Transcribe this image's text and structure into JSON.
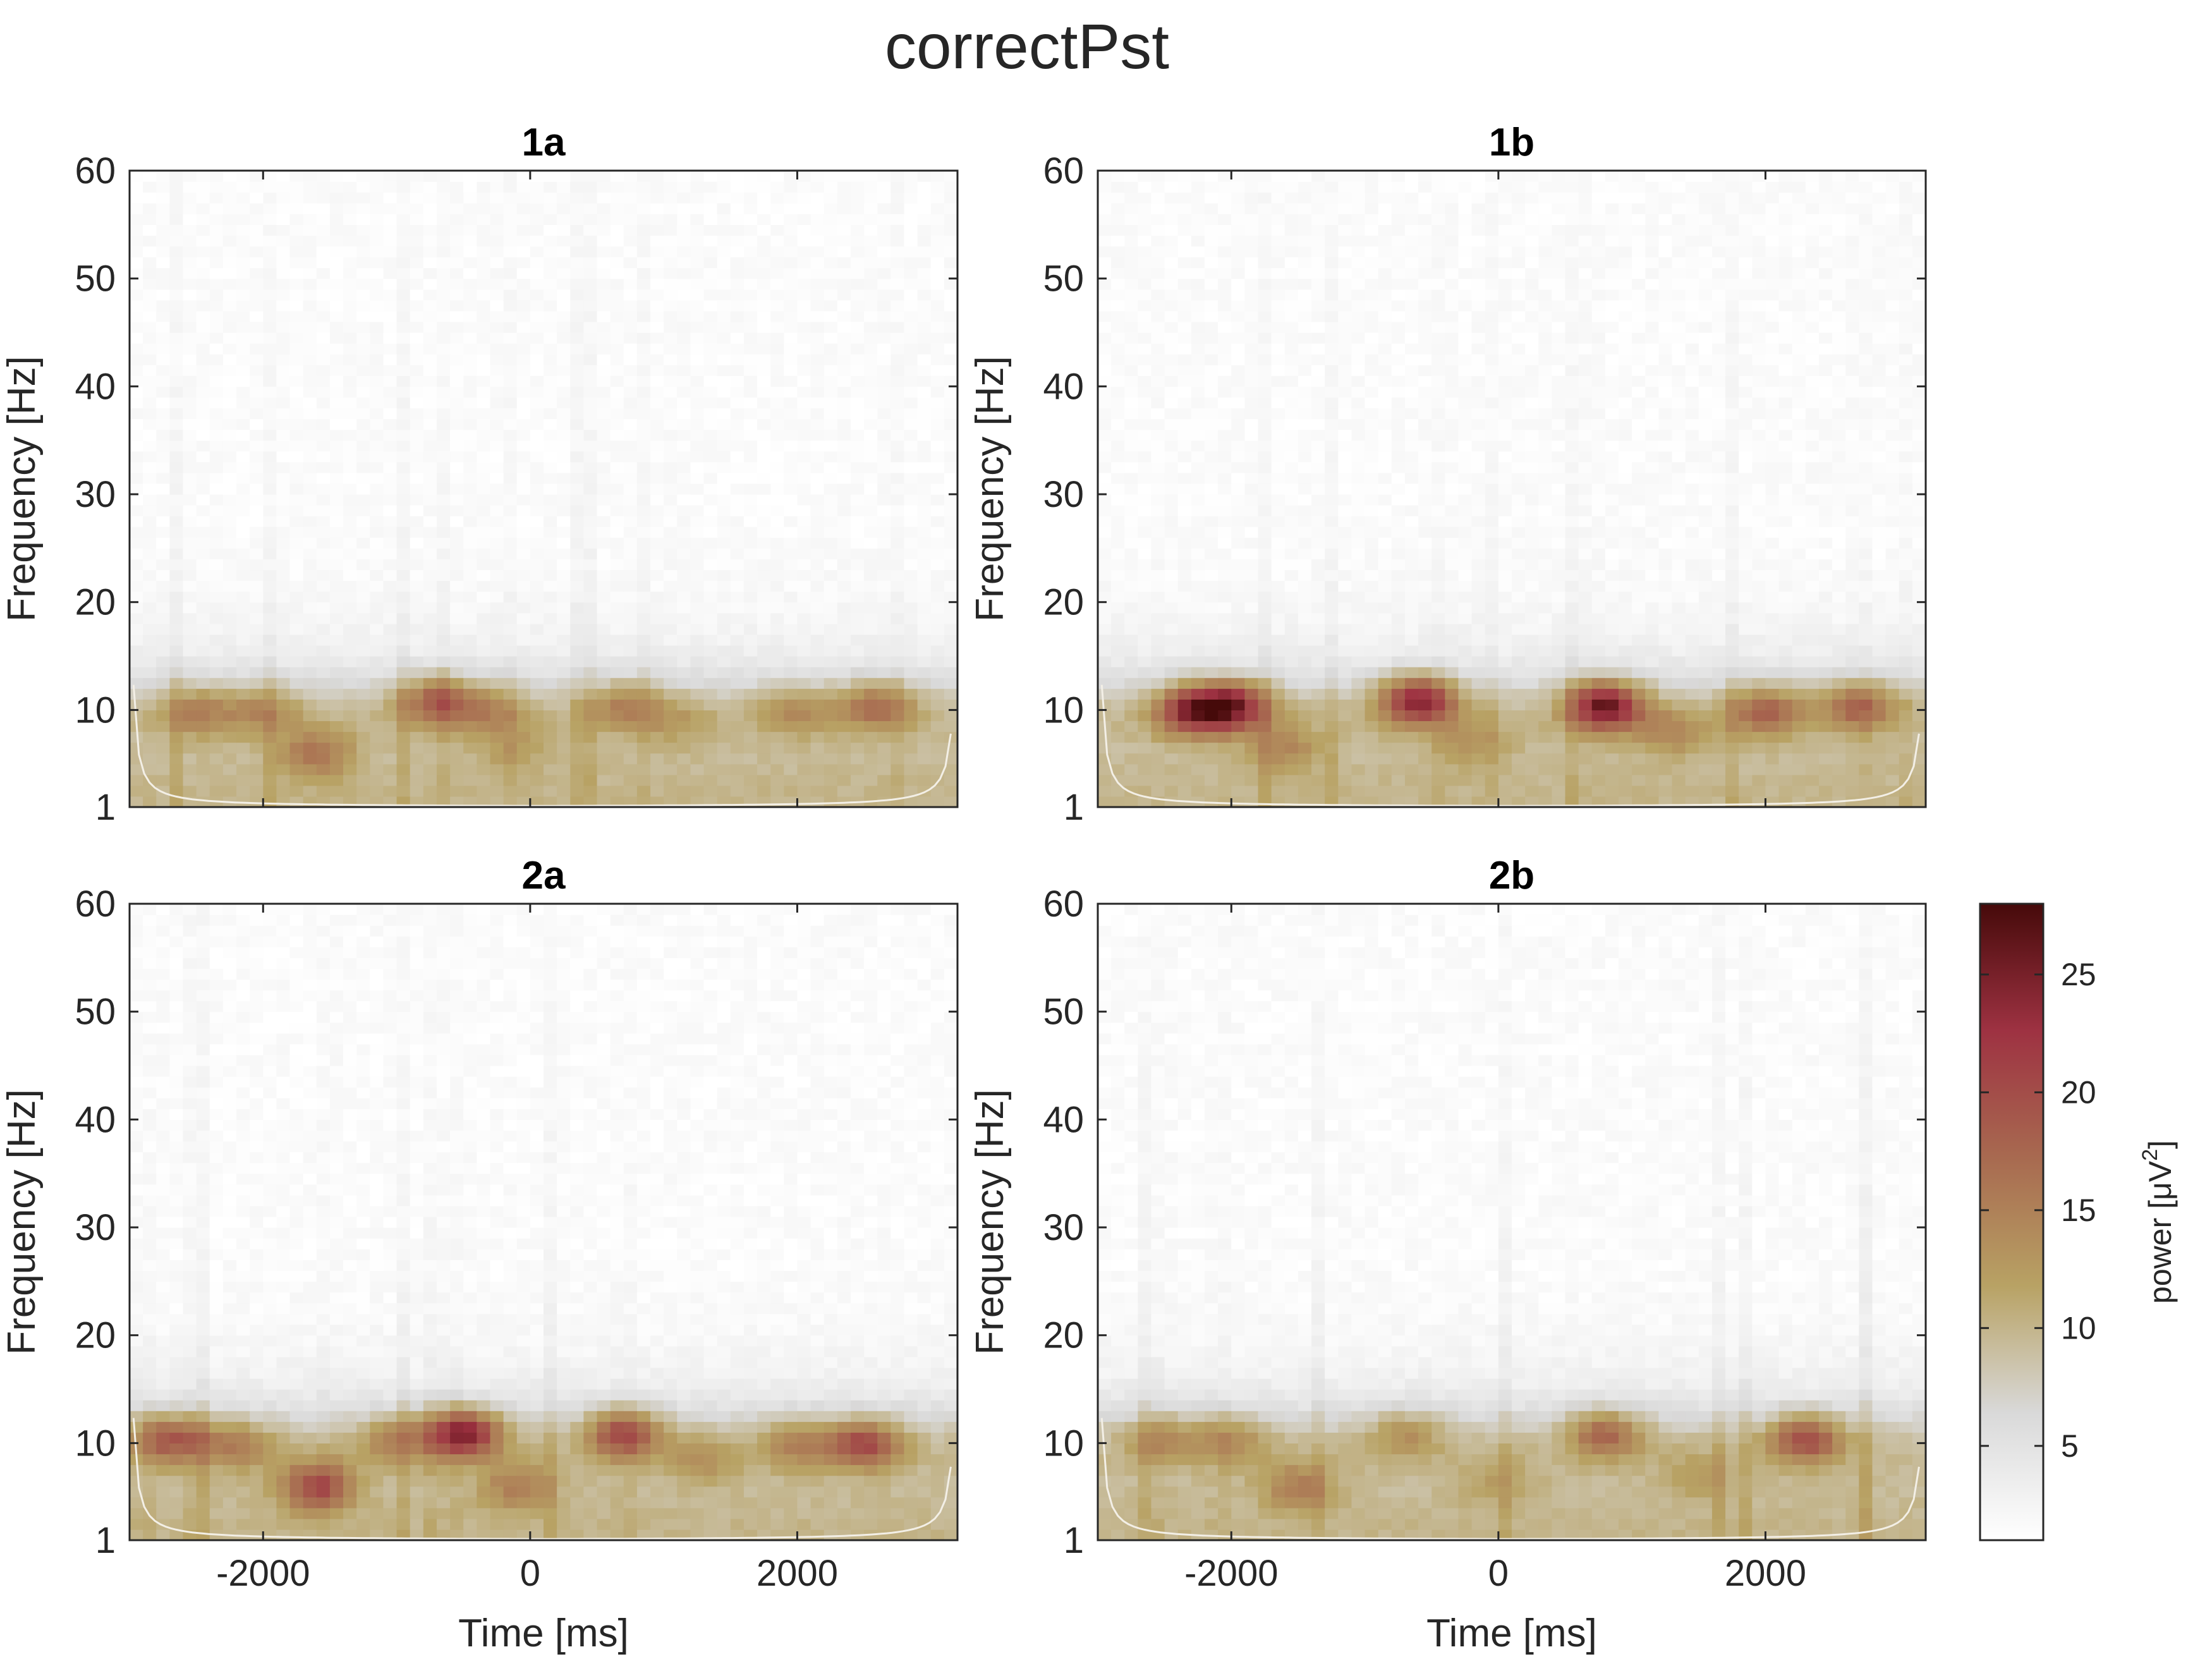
{
  "chart_data": {
    "type": "heatmap",
    "title": "correctPst",
    "xlabel": "Time [ms]",
    "ylabel": "Frequency [Hz]",
    "xlim": [
      -3000,
      3200
    ],
    "ylim": [
      1,
      60
    ],
    "xticks": [
      -2000,
      0,
      2000
    ],
    "xtick_labels": [
      "-2000",
      "0",
      "2000"
    ],
    "yticks": [
      1,
      10,
      20,
      30,
      40,
      50,
      60
    ],
    "ytick_labels": [
      "1",
      "10",
      "20",
      "30",
      "40",
      "50",
      "60"
    ],
    "grid": false,
    "colorbar": {
      "label": "power [μV",
      "label_superscript": "2",
      "label_close": "]",
      "range": [
        1,
        28
      ],
      "ticks": [
        5,
        10,
        15,
        20,
        25
      ],
      "tick_labels": [
        "5",
        "10",
        "15",
        "20",
        "25"
      ],
      "colors": [
        "#ffffff",
        "#d9d9d9",
        "#b8a264",
        "#a86a50",
        "#9e3242",
        "#460a0a"
      ]
    },
    "cone_of_influence_color": "#f3efe6",
    "panels": [
      {
        "title": "1a",
        "alpha_band": [
          {
            "t": -2500,
            "f": 9.5,
            "power": 17
          },
          {
            "t": -2000,
            "f": 9.5,
            "power": 16
          },
          {
            "t": -1600,
            "f": 5.5,
            "power": 18
          },
          {
            "t": -700,
            "f": 10.5,
            "power": 21
          },
          {
            "t": -300,
            "f": 9.5,
            "power": 16
          },
          {
            "t": -100,
            "f": 6,
            "power": 14
          },
          {
            "t": 700,
            "f": 10,
            "power": 17
          },
          {
            "t": 1100,
            "f": 8.5,
            "power": 14
          },
          {
            "t": 2000,
            "f": 9.5,
            "power": 16
          },
          {
            "t": 2600,
            "f": 10,
            "power": 19
          }
        ]
      },
      {
        "title": "1b",
        "alpha_band": [
          {
            "t": -2300,
            "f": 9.5,
            "power": 24
          },
          {
            "t": -2000,
            "f": 10,
            "power": 26
          },
          {
            "t": -1600,
            "f": 6,
            "power": 16
          },
          {
            "t": -600,
            "f": 10.5,
            "power": 27
          },
          {
            "t": -200,
            "f": 6.5,
            "power": 15
          },
          {
            "t": 800,
            "f": 10,
            "power": 28
          },
          {
            "t": 1300,
            "f": 7.5,
            "power": 16
          },
          {
            "t": 2000,
            "f": 9.5,
            "power": 20
          },
          {
            "t": 2700,
            "f": 10,
            "power": 20
          }
        ]
      },
      {
        "title": "2a",
        "alpha_band": [
          {
            "t": -2700,
            "f": 10,
            "power": 21
          },
          {
            "t": -2200,
            "f": 9.5,
            "power": 17
          },
          {
            "t": -1600,
            "f": 5.5,
            "power": 22
          },
          {
            "t": -1000,
            "f": 10,
            "power": 17
          },
          {
            "t": -500,
            "f": 10.5,
            "power": 27
          },
          {
            "t": -100,
            "f": 5.5,
            "power": 17
          },
          {
            "t": 700,
            "f": 10.5,
            "power": 23
          },
          {
            "t": 1300,
            "f": 8,
            "power": 15
          },
          {
            "t": 2000,
            "f": 9.5,
            "power": 17
          },
          {
            "t": 2500,
            "f": 9.5,
            "power": 22
          }
        ]
      },
      {
        "title": "2b",
        "alpha_band": [
          {
            "t": -2500,
            "f": 10,
            "power": 16
          },
          {
            "t": -2000,
            "f": 10,
            "power": 16
          },
          {
            "t": -1500,
            "f": 5.5,
            "power": 17
          },
          {
            "t": -700,
            "f": 10.5,
            "power": 16
          },
          {
            "t": 0,
            "f": 6,
            "power": 14
          },
          {
            "t": 800,
            "f": 10.5,
            "power": 20
          },
          {
            "t": 1500,
            "f": 6.5,
            "power": 14
          },
          {
            "t": 2300,
            "f": 10,
            "power": 22
          }
        ]
      }
    ]
  }
}
